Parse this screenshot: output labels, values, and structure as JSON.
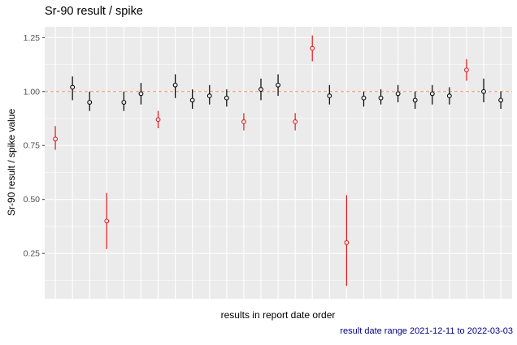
{
  "chart_data": {
    "type": "scatter",
    "mark": "pointrange",
    "title": "Sr-90 result / spike",
    "xlabel": "results in report date order",
    "ylabel": "Sr-90 result / spike value",
    "caption": "result date range 2021-12-11 to 2022-03-03",
    "xlim": [
      0.38,
      27.66
    ],
    "ylim": [
      0.04,
      1.3
    ],
    "yticks": [
      0.25,
      0.5,
      0.75,
      1.0,
      1.25
    ],
    "ytick_labels": [
      "0.25",
      "0.50",
      "0.75",
      "1.00",
      "1.25"
    ],
    "minor_yticks": [
      0.125,
      0.375,
      0.625,
      0.875,
      1.125
    ],
    "grid": "on",
    "legend": "none",
    "panel_color": "#EBEBEB",
    "grid_color": "#FFFFFF",
    "tick_label_color": "#4D4D4D",
    "axis_tick_color": "#333333",
    "caption_color": "#00008B",
    "reference_line": {
      "y": 1.0,
      "style": "dashed",
      "color": "#F89070"
    },
    "colors": {
      "normal": "#000000",
      "flagged": "#E31A1C"
    },
    "points": [
      {
        "x": 1,
        "y": 0.78,
        "ymin": 0.73,
        "ymax": 0.84,
        "flag": true
      },
      {
        "x": 2,
        "y": 1.02,
        "ymin": 0.96,
        "ymax": 1.07,
        "flag": false
      },
      {
        "x": 3,
        "y": 0.95,
        "ymin": 0.91,
        "ymax": 1.0,
        "flag": false
      },
      {
        "x": 4,
        "y": 0.4,
        "ymin": 0.27,
        "ymax": 0.53,
        "flag": true
      },
      {
        "x": 5,
        "y": 0.95,
        "ymin": 0.91,
        "ymax": 1.0,
        "flag": false
      },
      {
        "x": 6,
        "y": 0.99,
        "ymin": 0.94,
        "ymax": 1.04,
        "flag": false
      },
      {
        "x": 7,
        "y": 0.87,
        "ymin": 0.83,
        "ymax": 0.91,
        "flag": true
      },
      {
        "x": 8,
        "y": 1.03,
        "ymin": 0.97,
        "ymax": 1.08,
        "flag": false
      },
      {
        "x": 9,
        "y": 0.96,
        "ymin": 0.92,
        "ymax": 1.01,
        "flag": false
      },
      {
        "x": 10,
        "y": 0.98,
        "ymin": 0.94,
        "ymax": 1.03,
        "flag": false
      },
      {
        "x": 11,
        "y": 0.97,
        "ymin": 0.93,
        "ymax": 1.01,
        "flag": false
      },
      {
        "x": 12,
        "y": 0.86,
        "ymin": 0.82,
        "ymax": 0.9,
        "flag": true
      },
      {
        "x": 13,
        "y": 1.01,
        "ymin": 0.96,
        "ymax": 1.06,
        "flag": false
      },
      {
        "x": 14,
        "y": 1.03,
        "ymin": 0.98,
        "ymax": 1.08,
        "flag": false
      },
      {
        "x": 15,
        "y": 0.86,
        "ymin": 0.82,
        "ymax": 0.9,
        "flag": true
      },
      {
        "x": 16,
        "y": 1.2,
        "ymin": 1.14,
        "ymax": 1.26,
        "flag": true
      },
      {
        "x": 17,
        "y": 0.98,
        "ymin": 0.94,
        "ymax": 1.03,
        "flag": false
      },
      {
        "x": 18,
        "y": 0.3,
        "ymin": 0.1,
        "ymax": 0.52,
        "flag": true
      },
      {
        "x": 19,
        "y": 0.97,
        "ymin": 0.93,
        "ymax": 1.0,
        "flag": false
      },
      {
        "x": 20,
        "y": 0.97,
        "ymin": 0.94,
        "ymax": 1.01,
        "flag": false
      },
      {
        "x": 21,
        "y": 0.99,
        "ymin": 0.95,
        "ymax": 1.03,
        "flag": false
      },
      {
        "x": 22,
        "y": 0.96,
        "ymin": 0.92,
        "ymax": 1.0,
        "flag": false
      },
      {
        "x": 23,
        "y": 0.99,
        "ymin": 0.94,
        "ymax": 1.03,
        "flag": false
      },
      {
        "x": 24,
        "y": 0.98,
        "ymin": 0.94,
        "ymax": 1.02,
        "flag": false
      },
      {
        "x": 25,
        "y": 1.1,
        "ymin": 1.05,
        "ymax": 1.15,
        "flag": true
      },
      {
        "x": 26,
        "y": 1.0,
        "ymin": 0.95,
        "ymax": 1.06,
        "flag": false
      },
      {
        "x": 27,
        "y": 0.96,
        "ymin": 0.92,
        "ymax": 1.0,
        "flag": false
      }
    ]
  }
}
